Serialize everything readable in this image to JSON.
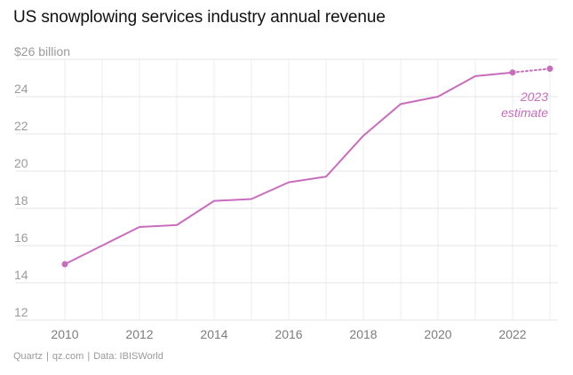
{
  "chart_data": {
    "type": "line",
    "title": "US snowplowing services industry annual revenue",
    "xlabel": "",
    "ylabel": "",
    "unit_label": "$26 billion",
    "xlim": [
      2010,
      2023
    ],
    "ylim": [
      12,
      26
    ],
    "y_ticks": [
      {
        "value": 26,
        "label": "$26 billion"
      },
      {
        "value": 24,
        "label": "24"
      },
      {
        "value": 22,
        "label": "22"
      },
      {
        "value": 20,
        "label": "20"
      },
      {
        "value": 18,
        "label": "18"
      },
      {
        "value": 16,
        "label": "16"
      },
      {
        "value": 14,
        "label": "14"
      },
      {
        "value": 12,
        "label": "12"
      }
    ],
    "x_ticks": [
      {
        "value": 2010,
        "label": "2010"
      },
      {
        "value": 2012,
        "label": "2012"
      },
      {
        "value": 2014,
        "label": "2014"
      },
      {
        "value": 2016,
        "label": "2016"
      },
      {
        "value": 2018,
        "label": "2018"
      },
      {
        "value": 2020,
        "label": "2020"
      },
      {
        "value": 2022,
        "label": "2022"
      }
    ],
    "series": [
      {
        "name": "Revenue",
        "x": [
          2010,
          2011,
          2012,
          2013,
          2014,
          2015,
          2016,
          2017,
          2018,
          2019,
          2020,
          2021,
          2022
        ],
        "values": [
          15.0,
          16.0,
          17.0,
          17.1,
          18.4,
          18.5,
          19.4,
          19.7,
          21.9,
          23.6,
          24.0,
          25.1,
          25.3
        ]
      },
      {
        "name": "2023 estimate",
        "x": [
          2022,
          2023
        ],
        "values": [
          25.3,
          25.5
        ],
        "style": "dotted"
      }
    ],
    "annotations": [
      {
        "lines": [
          "2023",
          "estimate"
        ],
        "x": 2023
      }
    ],
    "color": "#c86cbc",
    "grid": true
  },
  "source": {
    "publisher": "Quartz",
    "site": "qz.com",
    "data": "Data: IBISWorld",
    "separator": "|"
  }
}
